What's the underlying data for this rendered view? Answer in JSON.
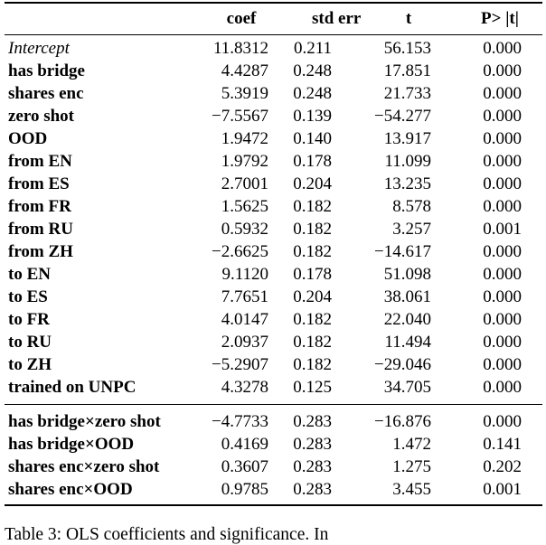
{
  "colors": {
    "background": "#ffffff",
    "text": "#000000",
    "rule": "#000000"
  },
  "table": {
    "column_headers": [
      "",
      "coef",
      "std err",
      "t",
      "P> |t|"
    ],
    "sections": [
      {
        "rows": [
          {
            "label_style": "italic",
            "cells": [
              "Intercept",
              "11.8312",
              "0.211",
              "56.153",
              "0.000"
            ]
          },
          {
            "label_style": "bold",
            "cells": [
              "has bridge",
              "4.4287",
              "0.248",
              "17.851",
              "0.000"
            ]
          },
          {
            "label_style": "bold",
            "cells": [
              "shares enc",
              "5.3919",
              "0.248",
              "21.733",
              "0.000"
            ]
          },
          {
            "label_style": "bold",
            "cells": [
              "zero shot",
              "−7.5567",
              "0.139",
              "−54.277",
              "0.000"
            ]
          },
          {
            "label_style": "bold",
            "cells": [
              "OOD",
              "1.9472",
              "0.140",
              "13.917",
              "0.000"
            ]
          },
          {
            "label_style": "bold",
            "cells": [
              "from EN",
              "1.9792",
              "0.178",
              "11.099",
              "0.000"
            ]
          },
          {
            "label_style": "bold",
            "cells": [
              "from ES",
              "2.7001",
              "0.204",
              "13.235",
              "0.000"
            ]
          },
          {
            "label_style": "bold",
            "cells": [
              "from FR",
              "1.5625",
              "0.182",
              "8.578",
              "0.000"
            ]
          },
          {
            "label_style": "bold",
            "cells": [
              "from RU",
              "0.5932",
              "0.182",
              "3.257",
              "0.001"
            ]
          },
          {
            "label_style": "bold",
            "cells": [
              "from ZH",
              "−2.6625",
              "0.182",
              "−14.617",
              "0.000"
            ]
          },
          {
            "label_style": "bold",
            "cells": [
              "to EN",
              "9.1120",
              "0.178",
              "51.098",
              "0.000"
            ]
          },
          {
            "label_style": "bold",
            "cells": [
              "to ES",
              "7.7651",
              "0.204",
              "38.061",
              "0.000"
            ]
          },
          {
            "label_style": "bold",
            "cells": [
              "to FR",
              "4.0147",
              "0.182",
              "22.040",
              "0.000"
            ]
          },
          {
            "label_style": "bold",
            "cells": [
              "to RU",
              "2.0937",
              "0.182",
              "11.494",
              "0.000"
            ]
          },
          {
            "label_style": "bold",
            "cells": [
              "to ZH",
              "−5.2907",
              "0.182",
              "−29.046",
              "0.000"
            ]
          },
          {
            "label_style": "bold",
            "cells": [
              "trained on UNPC",
              "4.3278",
              "0.125",
              "34.705",
              "0.000"
            ]
          }
        ]
      },
      {
        "rows": [
          {
            "label_style": "bold",
            "cells": [
              "has bridge×zero shot",
              "−4.7733",
              "0.283",
              "−16.876",
              "0.000"
            ]
          },
          {
            "label_style": "bold",
            "cells": [
              "has bridge×OOD",
              "0.4169",
              "0.283",
              "1.472",
              "0.141"
            ]
          },
          {
            "label_style": "bold",
            "cells": [
              "shares enc×zero shot",
              "0.3607",
              "0.283",
              "1.275",
              "0.202"
            ]
          },
          {
            "label_style": "bold",
            "cells": [
              "shares enc×OOD",
              "0.9785",
              "0.283",
              "3.455",
              "0.001"
            ]
          }
        ]
      }
    ]
  },
  "caption": {
    "text": "Table 3: OLS coefficients and significance. In"
  }
}
